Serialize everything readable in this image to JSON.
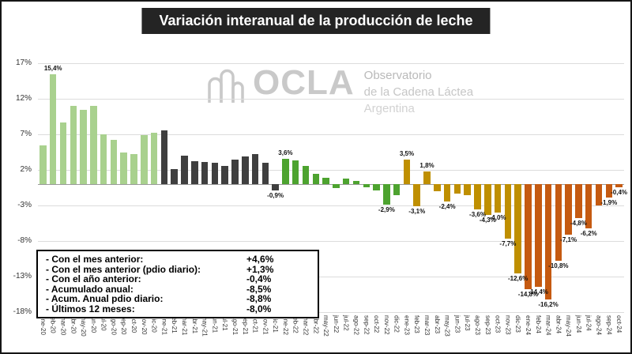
{
  "title": "Variación interanual de la producción de leche",
  "watermark": {
    "logo_text": "OCLA",
    "line1": "Observatorio",
    "line2": "de la Cadena Láctea",
    "line3": "Argentina"
  },
  "summary_box": {
    "rows": [
      {
        "label": "- Con el mes anterior:",
        "value": "+4,6%"
      },
      {
        "label": "- Con el mes anterior (pdio diario):",
        "value": "+1,3%"
      },
      {
        "label": "- Con el año anterior:",
        "value": "-0,4%"
      },
      {
        "label": "- Acumulado anual:",
        "value": "-8,5%"
      },
      {
        "label": "- Acum. Anual pdio diario:",
        "value": "-8,8%"
      },
      {
        "label": "- Últimos 12 meses:",
        "value": "-8,0%"
      }
    ]
  },
  "chart_data": {
    "type": "bar",
    "title": "Variación interanual de la producción de leche",
    "xlabel": "",
    "ylabel": "",
    "ylim": [
      -18,
      17
    ],
    "yticks": [
      17,
      12,
      7,
      2,
      -3,
      -8,
      -13,
      -18
    ],
    "ytick_labels": [
      "17%",
      "12%",
      "7%",
      "2%",
      "-3%",
      "-8%",
      "-13%",
      "-18%"
    ],
    "grid": true,
    "legend": "none",
    "categories": [
      "ene-20",
      "feb-20",
      "mar-20",
      "abr-20",
      "may-20",
      "jun-20",
      "jul-20",
      "ago-20",
      "sep-20",
      "oct-20",
      "nov-20",
      "dic-20",
      "ene-21",
      "feb-21",
      "mar-21",
      "abr-21",
      "may-21",
      "jun-21",
      "jul-21",
      "ago-21",
      "sep-21",
      "oct-21",
      "nov-21",
      "dic-21",
      "ene-22",
      "feb-22",
      "mar-22",
      "abr-22",
      "may-22",
      "jun-22",
      "jul-22",
      "ago-22",
      "sep-22",
      "oct-22",
      "nov-22",
      "dic-22",
      "ene-23",
      "feb-23",
      "mar-23",
      "abr-23",
      "may-23",
      "jun-23",
      "jul-23",
      "ago-23",
      "sep-23",
      "oct-23",
      "nov-23",
      "dic-23",
      "ene-24",
      "feb-24",
      "mar-24",
      "abr-24",
      "may-24",
      "jun-24",
      "jul-24",
      "ago-24",
      "sep-24",
      "oct-24"
    ],
    "values": [
      5.5,
      15.4,
      8.7,
      11.0,
      10.4,
      11.0,
      7.0,
      6.2,
      4.5,
      4.2,
      6.9,
      7.2,
      7.6,
      2.1,
      4.0,
      3.2,
      3.1,
      3.0,
      2.6,
      3.4,
      3.9,
      4.2,
      3.0,
      -0.9,
      3.6,
      3.3,
      2.6,
      1.4,
      0.9,
      -0.6,
      0.8,
      0.5,
      -0.4,
      -0.9,
      -2.9,
      -1.6,
      3.5,
      -3.1,
      1.8,
      -1.0,
      -2.4,
      -1.3,
      -1.6,
      -3.6,
      -4.3,
      -4.0,
      -7.7,
      -12.6,
      -14.8,
      -14.4,
      -16.2,
      -10.8,
      -7.1,
      -4.8,
      -6.2,
      -3.0,
      -1.9,
      -0.4
    ],
    "point_labels": [
      null,
      "15,4%",
      null,
      null,
      null,
      null,
      null,
      null,
      null,
      null,
      null,
      null,
      null,
      null,
      null,
      null,
      null,
      null,
      null,
      null,
      null,
      null,
      null,
      "-0,9%",
      "3,6%",
      null,
      null,
      null,
      null,
      null,
      null,
      null,
      null,
      null,
      "-2,9%",
      null,
      "3,5%",
      "-3,1%",
      "1,8%",
      null,
      "-2,4%",
      null,
      null,
      "-3,6%",
      "-4,3%",
      "-4,0%",
      "-7,7%",
      "-12,6%",
      "-14,8%",
      "-14,4%",
      "-16,2%",
      "-10,8%",
      "-7,1%",
      "-4,8%",
      "-6,2%",
      null,
      "-1,9%",
      "-0,4%"
    ],
    "colors": {
      "20": "#a9d18e",
      "21": "#3f3f3f",
      "22": "#4da32f",
      "23": "#bf8f00",
      "24": "#c55a11"
    },
    "gridline_color": "#dcdcdc",
    "zero_axis_color": "#9a9a9a"
  }
}
